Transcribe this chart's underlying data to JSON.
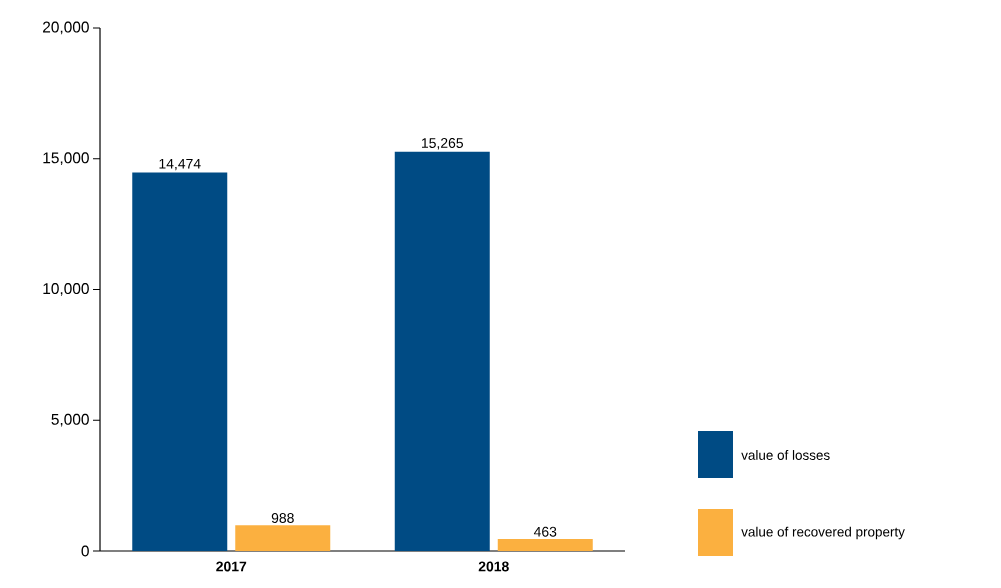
{
  "chart_data": {
    "type": "bar",
    "categories": [
      "2017",
      "2018"
    ],
    "series": [
      {
        "name": "value of losses",
        "color": "#004b84",
        "values": [
          14474,
          15265
        ],
        "value_labels": [
          "14,474",
          "15,265"
        ]
      },
      {
        "name": "value of recovered property",
        "color": "#fbb040",
        "values": [
          988,
          463
        ],
        "value_labels": [
          "988",
          "463"
        ]
      }
    ],
    "ylim": [
      0,
      20000
    ],
    "yticks": [
      0,
      {
        "value": 5000,
        "label": "5,000"
      },
      {
        "value": 10000,
        "label": "10,000"
      },
      {
        "value": 15000,
        "label": "15,000"
      },
      {
        "value": 20000,
        "label": "20,000"
      }
    ],
    "legend": "right",
    "grid": false
  }
}
